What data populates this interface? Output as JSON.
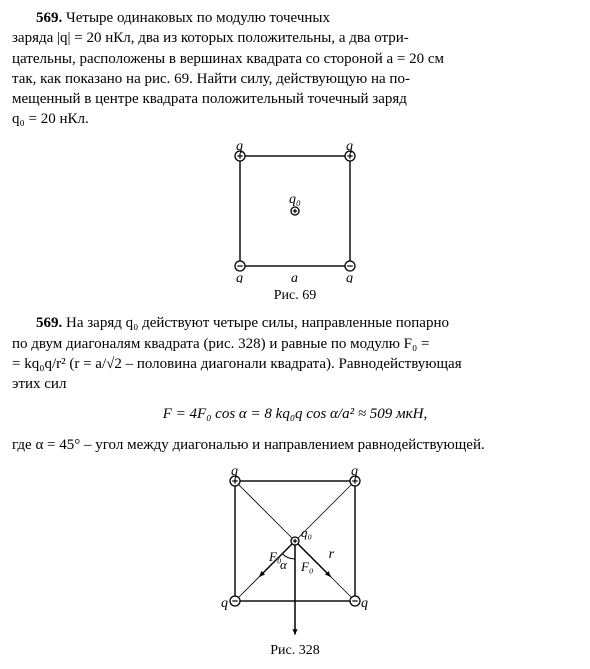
{
  "problem": {
    "number": "569.",
    "text_line1": "Четыре одинаковых по модулю точечных",
    "text_line2": "заряда |q| = 20 нКл, два из которых положительны, а два отри-",
    "text_line3": "цательны, расположены в вершинах квадрата со стороной a = 20 см",
    "text_line4": "так, как показано на рис. 69. Найти силу, действующую на по-",
    "text_line5": "мещенный в центре квадрата положительный точечный заряд",
    "text_line6": "q₀ = 20 нКл."
  },
  "fig69": {
    "caption": "Рис. 69",
    "size": 110,
    "stroke": "#000000",
    "label_q": "q",
    "label_q0": "q₀",
    "label_a": "a",
    "circle_r": 5
  },
  "solution": {
    "number": "569.",
    "text_line1": "На заряд q₀ действуют четыре силы, направленные попарно",
    "text_line2": "по двум диагоналям квадрата (рис. 328) и равные по модулю F₀ =",
    "text_line3": "= kq₀q/r² (r = a/√2 – половина диагонали квадрата). Равнодействующая",
    "text_line4": "этих сил",
    "formula": "F = 4F₀ cos α = 8 kq₀q cos α/a² ≈ 509 мкН,",
    "text_line5": "где α = 45° – угол между диагональю и направлением равнодействующей."
  },
  "fig328": {
    "caption": "Рис. 328",
    "size": 120,
    "stroke": "#000000",
    "label_q": "q",
    "label_q0": "q₀",
    "label_r": "r",
    "label_F0": "F₀",
    "label_alpha": "α",
    "circle_r": 5
  }
}
